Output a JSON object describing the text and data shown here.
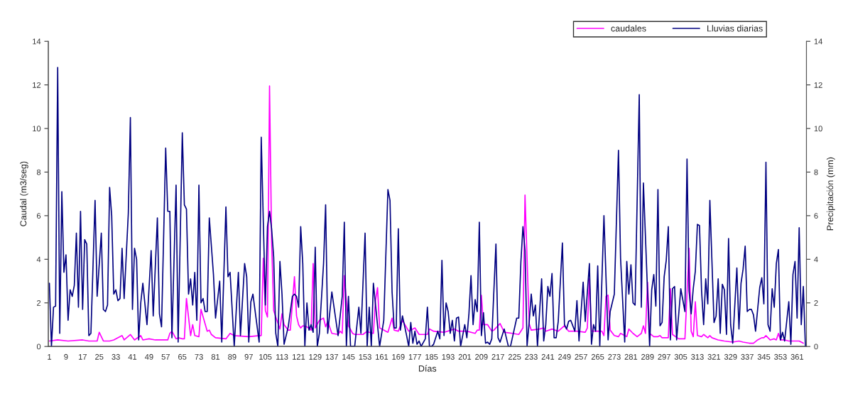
{
  "chart_data": {
    "type": "line",
    "xlabel": "Días",
    "ylabel": "Caudal (m3/seg)",
    "y2label": "Precipitación (mm)",
    "xlim": [
      0.5,
      365.5
    ],
    "xticks": [
      1,
      9,
      17,
      25,
      33,
      41,
      49,
      57,
      65,
      73,
      81,
      89,
      97,
      105,
      113,
      121,
      129,
      137,
      145,
      153,
      161,
      169,
      177,
      185,
      193,
      201,
      209,
      217,
      225,
      233,
      241,
      249,
      257,
      265,
      273,
      281,
      289,
      297,
      305,
      313,
      321,
      329,
      337,
      345,
      353,
      361
    ],
    "ylim": [
      0,
      14
    ],
    "yticks": [
      0,
      2,
      4,
      6,
      8,
      10,
      12,
      14
    ],
    "y2lim": [
      0,
      14
    ],
    "y2ticks": [
      0,
      2,
      4,
      6,
      8,
      10,
      12,
      14
    ],
    "grid": false,
    "legend": "top right",
    "marker": "none",
    "line_style": "solid",
    "series": [
      {
        "name": "caudales",
        "color": "#ff00ff",
        "x": [
          1,
          5,
          10,
          17,
          20,
          24,
          25,
          27,
          30,
          32,
          36,
          37,
          40,
          42,
          45,
          46,
          49,
          52,
          58,
          59,
          60,
          62,
          63,
          65,
          66,
          67,
          69,
          70,
          71,
          73,
          74,
          77,
          78,
          79,
          81,
          86,
          88,
          90,
          97,
          102,
          103,
          104,
          105,
          106,
          107,
          108,
          109,
          110,
          112,
          113,
          114,
          116,
          117,
          119,
          120,
          121,
          122,
          123,
          125,
          127,
          128,
          129,
          131,
          133,
          134,
          135,
          137,
          140,
          141,
          142,
          143,
          145,
          147,
          148,
          152,
          154,
          155,
          157,
          158,
          159,
          160,
          164,
          166,
          167,
          169,
          171,
          174,
          177,
          179,
          183,
          184,
          186,
          191,
          196,
          198,
          202,
          206,
          207,
          208,
          209,
          210,
          212,
          214,
          215,
          218,
          220,
          224,
          227,
          229,
          230,
          232,
          233,
          237,
          239,
          240,
          243,
          246,
          249,
          251,
          255,
          259,
          260,
          261,
          262,
          265,
          267,
          268,
          269,
          270,
          271,
          273,
          275,
          276,
          279,
          280,
          282,
          284,
          286,
          287,
          288,
          289,
          290,
          292,
          294,
          295,
          296,
          299,
          300,
          301,
          304,
          307,
          309,
          310,
          311,
          312,
          313,
          315,
          316,
          318,
          319,
          320,
          323,
          326,
          330,
          333,
          335,
          338,
          340,
          342,
          344,
          345,
          346,
          348,
          350,
          351,
          352,
          353,
          355,
          357,
          362,
          364
        ],
        "values": [
          0.25,
          0.3,
          0.25,
          0.3,
          0.25,
          0.25,
          0.65,
          0.25,
          0.25,
          0.3,
          0.5,
          0.3,
          0.55,
          0.3,
          0.5,
          0.3,
          0.35,
          0.3,
          0.3,
          0.6,
          0.7,
          0.35,
          0.4,
          0.35,
          0.35,
          2.2,
          0.5,
          1.0,
          0.5,
          0.45,
          1.7,
          0.7,
          0.75,
          0.55,
          0.4,
          0.35,
          0.6,
          0.5,
          0.45,
          0.5,
          0.5,
          4.05,
          1.65,
          1.35,
          11.95,
          4.8,
          1.65,
          1.35,
          0.8,
          1.5,
          1.0,
          0.75,
          0.75,
          3.2,
          1.4,
          1.0,
          0.85,
          0.95,
          0.9,
          0.75,
          3.8,
          0.85,
          1.2,
          1.3,
          0.9,
          1.15,
          0.6,
          0.55,
          0.7,
          0.6,
          3.25,
          0.95,
          0.6,
          0.55,
          0.55,
          0.7,
          0.65,
          0.6,
          2.1,
          2.7,
          0.85,
          0.65,
          1.3,
          0.75,
          0.7,
          1.2,
          0.7,
          0.85,
          0.55,
          0.55,
          0.8,
          0.7,
          0.65,
          0.8,
          0.7,
          0.7,
          0.6,
          0.75,
          0.75,
          2.35,
          1.0,
          1.0,
          0.7,
          0.75,
          1.05,
          0.65,
          0.6,
          0.55,
          0.85,
          6.95,
          1.05,
          0.75,
          0.8,
          0.85,
          0.7,
          0.8,
          0.7,
          0.95,
          0.7,
          0.7,
          0.65,
          0.85,
          3.1,
          0.7,
          0.7,
          0.7,
          0.5,
          2.3,
          2.35,
          0.75,
          0.5,
          0.45,
          0.6,
          0.45,
          0.8,
          0.6,
          0.45,
          0.6,
          0.95,
          0.6,
          2.95,
          0.6,
          0.45,
          0.45,
          0.5,
          0.4,
          0.4,
          2.65,
          0.55,
          0.35,
          0.35,
          4.5,
          0.7,
          0.45,
          2.05,
          0.5,
          0.45,
          0.55,
          0.4,
          0.5,
          0.4,
          0.3,
          0.25,
          0.2,
          0.25,
          0.2,
          0.15,
          0.15,
          0.3,
          0.4,
          0.4,
          0.5,
          0.3,
          0.35,
          0.3,
          0.6,
          0.3,
          0.3,
          0.25,
          0.25,
          0.15
        ]
      },
      {
        "name": "Lluvias diarias",
        "color": "#000080",
        "axis": "y2",
        "x": [
          1,
          2,
          3,
          4,
          5,
          6,
          7,
          8,
          9,
          10,
          11,
          12,
          13,
          14,
          15,
          16,
          17,
          18,
          19,
          20,
          21,
          23,
          24,
          26,
          27,
          28,
          29,
          30,
          31,
          32,
          33,
          34,
          35,
          36,
          37,
          39,
          40,
          41,
          42,
          43,
          44,
          45,
          46,
          48,
          50,
          51,
          53,
          54,
          55,
          57,
          58,
          59,
          60,
          62,
          63,
          65,
          66,
          67,
          68,
          69,
          70,
          71,
          72,
          73,
          74,
          75,
          76,
          77,
          78,
          80,
          81,
          83,
          84,
          86,
          87,
          88,
          90,
          92,
          93,
          95,
          96,
          97,
          98,
          99,
          102,
          103,
          105,
          106,
          107,
          108,
          109,
          110,
          111,
          112,
          113,
          114,
          116,
          118,
          119,
          120,
          121,
          122,
          123,
          124,
          125,
          126,
          127,
          128,
          129,
          130,
          131,
          133,
          134,
          135,
          137,
          140,
          142,
          143,
          144,
          145,
          146,
          148,
          150,
          151,
          153,
          154,
          155,
          156,
          157,
          160,
          161,
          162,
          164,
          165,
          166,
          167,
          168,
          169,
          170,
          171,
          173,
          174,
          175,
          176,
          177,
          178,
          179,
          180,
          182,
          183,
          184,
          185,
          186,
          188,
          189,
          190,
          191,
          192,
          193,
          194,
          195,
          196,
          197,
          198,
          199,
          201,
          202,
          203,
          204,
          205,
          206,
          207,
          208,
          209,
          210,
          211,
          212,
          213,
          214,
          216,
          217,
          218,
          220,
          222,
          223,
          226,
          227,
          228,
          229,
          230,
          231,
          232,
          233,
          234,
          235,
          236,
          238,
          239,
          240,
          241,
          242,
          243,
          244,
          245,
          246,
          248,
          249,
          250,
          251,
          252,
          254,
          255,
          256,
          258,
          259,
          261,
          262,
          263,
          264,
          265,
          266,
          268,
          270,
          271,
          273,
          275,
          276,
          278,
          279,
          280,
          281,
          282,
          283,
          285,
          286,
          287,
          290,
          291,
          292,
          293,
          294,
          295,
          296,
          297,
          298,
          299,
          300,
          301,
          302,
          303,
          305,
          307,
          308,
          309,
          310,
          311,
          312,
          313,
          314,
          315,
          316,
          317,
          318,
          319,
          321,
          322,
          323,
          324,
          325,
          326,
          327,
          328,
          329,
          330,
          332,
          333,
          334,
          335,
          336,
          337,
          338,
          339,
          340,
          341,
          343,
          344,
          345,
          346,
          347,
          348,
          349,
          350,
          351,
          352,
          353,
          354,
          355,
          357,
          358,
          359,
          360,
          361,
          362,
          363,
          364,
          365
        ],
        "values": [
          2.9,
          0,
          1.8,
          1.85,
          12.8,
          0.6,
          7.1,
          3.4,
          4.2,
          1.2,
          2.6,
          2.3,
          2.8,
          5.2,
          1.8,
          6.2,
          1.7,
          4.9,
          4.7,
          0.5,
          0.6,
          6.7,
          2.3,
          5.2,
          1.7,
          1.6,
          1.9,
          7.3,
          6.0,
          2.4,
          2.6,
          2.1,
          2.2,
          4.5,
          2.2,
          6.1,
          10.5,
          1.7,
          4.5,
          4.0,
          0.3,
          2.0,
          2.9,
          1.0,
          4.4,
          1.4,
          5.9,
          1.5,
          0.9,
          9.1,
          6.2,
          6.2,
          0.4,
          7.4,
          0.2,
          9.8,
          6.5,
          6.3,
          2.4,
          3.1,
          1.9,
          3.4,
          1.2,
          7.4,
          2.0,
          2.2,
          1.6,
          1.6,
          5.9,
          3.3,
          1.3,
          3.0,
          0.2,
          6.4,
          3.2,
          3.4,
          0,
          3.4,
          0.5,
          3.8,
          3.2,
          0.2,
          2.05,
          2.4,
          0.2,
          9.6,
          1.9,
          5.5,
          6.2,
          5.4,
          4.1,
          0.6,
          0,
          3.9,
          2.4,
          0.1,
          0.9,
          2.3,
          2.4,
          2.3,
          1.8,
          5.5,
          3.8,
          0,
          2.0,
          0.75,
          1.0,
          0.65,
          4.55,
          0,
          0.6,
          3.8,
          6.5,
          0.6,
          2.5,
          0.5,
          2.3,
          5.7,
          0,
          2.3,
          0,
          0,
          1.8,
          0.6,
          5.2,
          0,
          1.8,
          0,
          2.9,
          0,
          0.6,
          1.2,
          7.2,
          6.7,
          2.5,
          0.85,
          0.85,
          5.4,
          0.75,
          1.4,
          0.5,
          0,
          1.1,
          0.15,
          0.7,
          0.1,
          0.25,
          0,
          0.35,
          1.8,
          0,
          0,
          0.1,
          0.7,
          0.35,
          3.95,
          0.5,
          2.0,
          1.6,
          0.6,
          1.2,
          0.25,
          1.3,
          1.35,
          0,
          1.0,
          0.4,
          1.5,
          3.25,
          1.0,
          2.15,
          1.6,
          5.7,
          0.5,
          1.55,
          0.15,
          0.2,
          0.1,
          0.35,
          4.7,
          0.4,
          0.2,
          0.8,
          0,
          0,
          1.3,
          1.3,
          3.85,
          5.5,
          4.4,
          0.03,
          1.1,
          2.4,
          1.4,
          1.9,
          0,
          3.1,
          0.25,
          1.0,
          2.75,
          2.3,
          3.35,
          0.4,
          0.4,
          1.15,
          4.75,
          1.0,
          0.8,
          1.15,
          1.2,
          0.7,
          2.1,
          0.25,
          2.95,
          1.15,
          3.8,
          0.1,
          1.0,
          0.7,
          3.7,
          0,
          6.0,
          0.3,
          1.6,
          2.4,
          9.0,
          4.05,
          0.2,
          3.9,
          2.4,
          3.75,
          2.0,
          1.9,
          11.55,
          1.8,
          7.5,
          0,
          2.6,
          3.3,
          1.85,
          7.2,
          0.95,
          1.1,
          3.2,
          3.95,
          5.5,
          0.3,
          2.65,
          2.75,
          0.3,
          2.65,
          1.6,
          8.6,
          2.55,
          1.5,
          2.65,
          3.45,
          5.6,
          5.55,
          2.55,
          1.0,
          3.1,
          1.95,
          6.7,
          1.1,
          1.4,
          3.1,
          0.6,
          2.85,
          2.6,
          0.55,
          4.95,
          1.0,
          0.15,
          3.6,
          0.8,
          2.9,
          3.55,
          4.6,
          1.6,
          1.7,
          1.7,
          1.45,
          0.7,
          2.7,
          3.15,
          1.95,
          8.45,
          1.0,
          0.7,
          2.65,
          1.8,
          3.8,
          4.45,
          0.3,
          0.65,
          0.25,
          2.05,
          0.1,
          3.3,
          3.9,
          1.3,
          5.45,
          1.0,
          2.75,
          0
        ]
      }
    ]
  }
}
